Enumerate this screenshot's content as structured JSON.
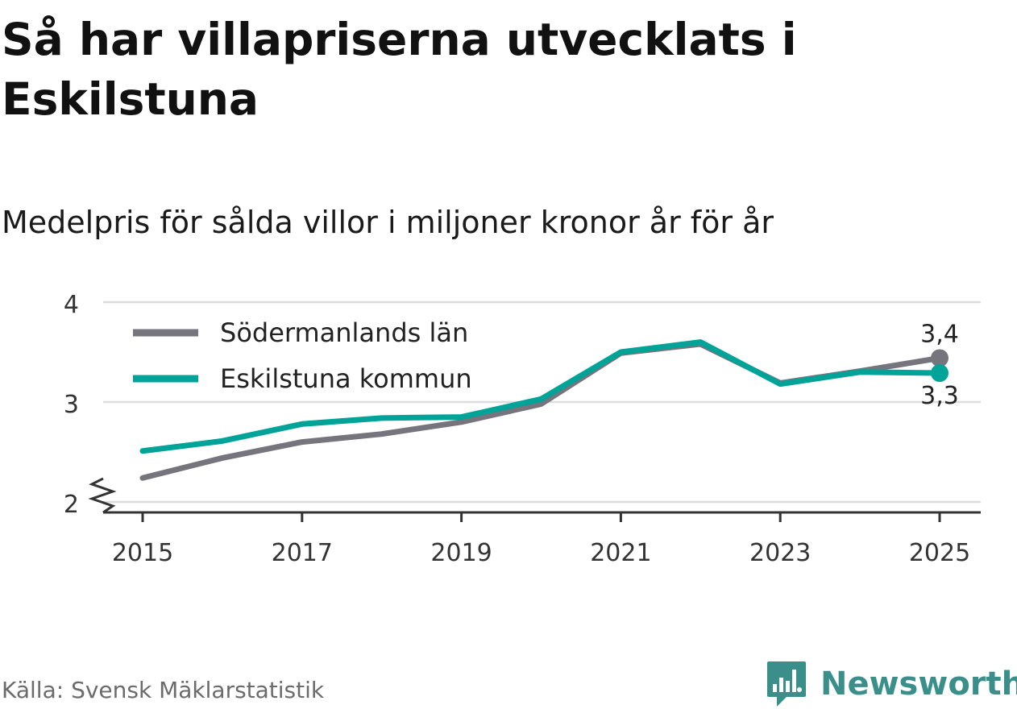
{
  "header": {
    "title": "Så har villapriserna utvecklats i Eskilstuna",
    "subtitle": "Medelpris för sålda villor i miljoner kronor år för år"
  },
  "footer": {
    "source": "Källa: Svensk Mäklarstatistik",
    "brand": "Newsworthy",
    "brand_icon": "bar-chart-speech-bubble-icon"
  },
  "colors": {
    "sodermanland": "#76747c",
    "eskilstuna": "#00a398",
    "grid": "#dddddd",
    "axis": "#333333",
    "brand": "#3a8f8a"
  },
  "chart_data": {
    "type": "line",
    "title": "Medelpris för sålda villor i miljoner kronor år för år",
    "xlabel": "",
    "ylabel": "",
    "x": [
      2015,
      2016,
      2017,
      2018,
      2019,
      2020,
      2021,
      2022,
      2023,
      2024,
      2025
    ],
    "xticks": [
      "2015",
      "2017",
      "2019",
      "2021",
      "2023",
      "2025"
    ],
    "xticks_values": [
      2015,
      2017,
      2019,
      2021,
      2023,
      2025
    ],
    "yticks": [
      "2",
      "3",
      "4"
    ],
    "yticks_values": [
      2,
      3,
      4
    ],
    "xlim": [
      2014.5,
      2025.5
    ],
    "ylim": [
      2,
      4
    ],
    "axis_break": true,
    "grid": true,
    "legend_position": "top-left",
    "series": [
      {
        "name": "Södermanlands län",
        "color_key": "sodermanland",
        "values": [
          2.24,
          2.44,
          2.6,
          2.68,
          2.8,
          2.98,
          3.49,
          3.58,
          3.19,
          3.31,
          3.44
        ],
        "end_label": "3,4",
        "end_label_side": "above"
      },
      {
        "name": "Eskilstuna kommun",
        "color_key": "eskilstuna",
        "values": [
          2.51,
          2.61,
          2.78,
          2.84,
          2.85,
          3.03,
          3.5,
          3.6,
          3.18,
          3.3,
          3.29
        ],
        "end_label": "3,3",
        "end_label_side": "below"
      }
    ]
  }
}
